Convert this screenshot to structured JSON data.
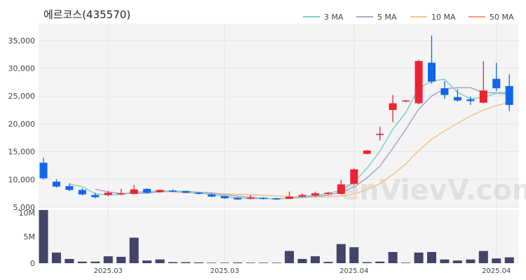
{
  "chart_data": {
    "type": "candlestick",
    "title": "에르코스(435570)",
    "watermark": "enVievV.com",
    "legend": [
      {
        "label": "3 MA",
        "color": "#7fd3c5"
      },
      {
        "label": "5 MA",
        "color": "#b3a3c6"
      },
      {
        "label": "10 MA",
        "color": "#f0c48f"
      },
      {
        "label": "50 MA",
        "color": "#f39a85"
      }
    ],
    "price_axis": {
      "ylim": [
        5000,
        38000
      ],
      "ticks": [
        "35,000",
        "30,000",
        "25,000",
        "20,000",
        "15,000",
        "10,000",
        "5,000"
      ],
      "tick_values": [
        35000,
        30000,
        25000,
        20000,
        15000,
        10000,
        5000
      ]
    },
    "volume_axis": {
      "ylim": [
        0,
        10000000
      ],
      "ticks": [
        "10M",
        "5M",
        "0"
      ],
      "tick_values": [
        10000000,
        5000000,
        0
      ]
    },
    "x_tick_labels": [
      "2025.03",
      "2025.03",
      "2025.04",
      "2025.04"
    ],
    "x_tick_index": [
      5,
      14,
      24,
      35
    ],
    "colors": {
      "up": "#ee2233",
      "down": "#1166ee",
      "volume": "#44446a",
      "grid": "#e6e6e6",
      "panel": "#f4f4f4"
    },
    "candles": [
      {
        "o": 13000,
        "h": 13900,
        "l": 10000,
        "c": 10200
      },
      {
        "o": 9600,
        "h": 10000,
        "l": 8500,
        "c": 8700
      },
      {
        "o": 8800,
        "h": 9300,
        "l": 7900,
        "c": 8100
      },
      {
        "o": 8100,
        "h": 8400,
        "l": 7100,
        "c": 7300
      },
      {
        "o": 7200,
        "h": 7600,
        "l": 6600,
        "c": 6800
      },
      {
        "o": 7200,
        "h": 7900,
        "l": 7000,
        "c": 7600
      },
      {
        "o": 7300,
        "h": 8300,
        "l": 7200,
        "c": 7500
      },
      {
        "o": 7400,
        "h": 9000,
        "l": 7300,
        "c": 8200
      },
      {
        "o": 8300,
        "h": 8400,
        "l": 7400,
        "c": 7600
      },
      {
        "o": 7700,
        "h": 8200,
        "l": 7600,
        "c": 8100
      },
      {
        "o": 8000,
        "h": 8200,
        "l": 7700,
        "c": 7800
      },
      {
        "o": 7900,
        "h": 7950,
        "l": 7500,
        "c": 7600
      },
      {
        "o": 7600,
        "h": 7700,
        "l": 7300,
        "c": 7400
      },
      {
        "o": 7300,
        "h": 7500,
        "l": 6800,
        "c": 6900
      },
      {
        "o": 7000,
        "h": 7100,
        "l": 6500,
        "c": 6600
      },
      {
        "o": 6700,
        "h": 6800,
        "l": 6300,
        "c": 6400
      },
      {
        "o": 6500,
        "h": 7200,
        "l": 6400,
        "c": 6700
      },
      {
        "o": 6700,
        "h": 6800,
        "l": 6400,
        "c": 6500
      },
      {
        "o": 6600,
        "h": 6700,
        "l": 6300,
        "c": 6400
      },
      {
        "o": 6500,
        "h": 7800,
        "l": 6500,
        "c": 6900
      },
      {
        "o": 6900,
        "h": 7500,
        "l": 6800,
        "c": 7200
      },
      {
        "o": 7100,
        "h": 7800,
        "l": 6900,
        "c": 7500
      },
      {
        "o": 7400,
        "h": 7800,
        "l": 7200,
        "c": 7600
      },
      {
        "o": 7400,
        "h": 9900,
        "l": 7300,
        "c": 9100
      },
      {
        "o": 9200,
        "h": 12000,
        "l": 9000,
        "c": 11800
      },
      {
        "o": 14600,
        "h": 15300,
        "l": 14500,
        "c": 15200
      },
      {
        "o": 18000,
        "h": 19500,
        "l": 17000,
        "c": 18200
      },
      {
        "o": 22500,
        "h": 25200,
        "l": 20300,
        "c": 23700
      },
      {
        "o": 24100,
        "h": 24300,
        "l": 23900,
        "c": 24200
      },
      {
        "o": 23700,
        "h": 31500,
        "l": 23500,
        "c": 31300
      },
      {
        "o": 31000,
        "h": 35900,
        "l": 27200,
        "c": 27600
      },
      {
        "o": 26400,
        "h": 27700,
        "l": 24500,
        "c": 25200
      },
      {
        "o": 24800,
        "h": 26200,
        "l": 24000,
        "c": 24200
      },
      {
        "o": 24400,
        "h": 24900,
        "l": 23400,
        "c": 24100
      },
      {
        "o": 23800,
        "h": 31300,
        "l": 23700,
        "c": 26000
      },
      {
        "o": 28100,
        "h": 31000,
        "l": 25900,
        "c": 26400
      },
      {
        "o": 26800,
        "h": 28900,
        "l": 22300,
        "c": 23400
      }
    ],
    "volume": [
      10000000,
      2000000,
      800000,
      300000,
      300000,
      1300000,
      1200000,
      4800000,
      500000,
      700000,
      200000,
      200000,
      150000,
      100000,
      100000,
      150000,
      100000,
      100000,
      100000,
      2300000,
      800000,
      1300000,
      250000,
      3600000,
      3000000,
      200000,
      300000,
      2100000,
      100000,
      2000000,
      2100000,
      700000,
      500000,
      700000,
      2300000,
      900000,
      1100000
    ],
    "ma3": [
      null,
      null,
      9167,
      8700,
      7400,
      7233,
      7300,
      7767,
      7767,
      7967,
      7833,
      7833,
      7600,
      7300,
      6967,
      6633,
      6567,
      6533,
      6533,
      6600,
      6833,
      7200,
      7433,
      8067,
      9500,
      12033,
      15067,
      19033,
      22033,
      26400,
      27700,
      28033,
      25667,
      24500,
      24767,
      25500,
      25300
    ],
    "ma5": [
      null,
      null,
      null,
      null,
      8220,
      7760,
      7460,
      7480,
      7540,
      7800,
      7840,
      7860,
      7700,
      7560,
      7260,
      6980,
      6800,
      6560,
      6520,
      6580,
      6740,
      6940,
      7140,
      7660,
      8640,
      10280,
      12380,
      15600,
      19020,
      22620,
      25000,
      26300,
      26500,
      26500,
      25600,
      25600,
      25600
    ],
    "ma10": [
      null,
      null,
      null,
      null,
      null,
      null,
      null,
      null,
      null,
      7980,
      7740,
      7580,
      7510,
      7470,
      7420,
      7310,
      7230,
      7130,
      7020,
      6930,
      6870,
      6840,
      6850,
      7000,
      7360,
      8150,
      9240,
      10880,
      12800,
      15180,
      17230,
      18740,
      20080,
      21420,
      22460,
      23280,
      23850
    ]
  }
}
